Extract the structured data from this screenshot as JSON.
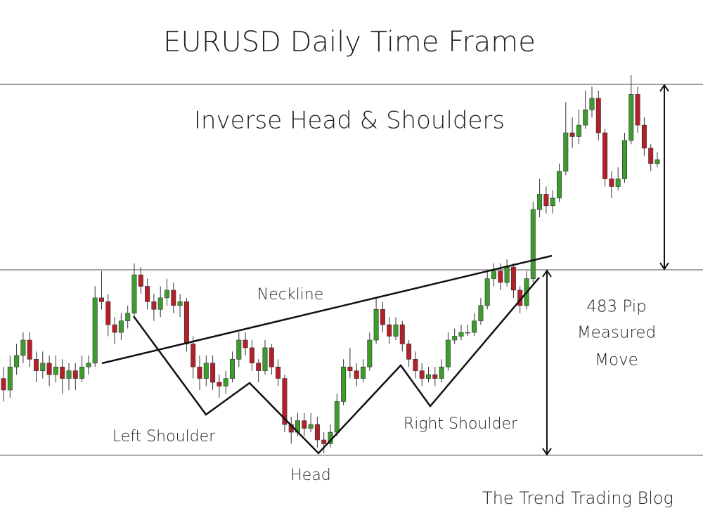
{
  "chart_data": {
    "type": "candlestick",
    "title": "EURUSD Daily Time Frame",
    "subtitle": "Inverse Head & Shoulders",
    "annotations": {
      "neckline": "Neckline",
      "left_shoulder": "Left Shoulder",
      "head": "Head",
      "right_shoulder": "Right Shoulder",
      "measured_move": [
        "483 Pip",
        "Measured",
        "Move"
      ]
    },
    "credit": "The Trend Trading Blog",
    "up_color": "#3c9c2c",
    "down_color": "#b3202a",
    "ylim": [
      -187,
      1186
    ],
    "levels": [
      0,
      483,
      966
    ],
    "ohlc": [
      [
        200,
        230,
        140,
        170
      ],
      [
        170,
        260,
        150,
        230
      ],
      [
        230,
        290,
        210,
        260
      ],
      [
        260,
        320,
        240,
        300
      ],
      [
        300,
        320,
        230,
        250
      ],
      [
        250,
        270,
        190,
        220
      ],
      [
        220,
        270,
        200,
        240
      ],
      [
        240,
        260,
        180,
        210
      ],
      [
        210,
        260,
        190,
        230
      ],
      [
        230,
        250,
        160,
        200
      ],
      [
        200,
        240,
        170,
        220
      ],
      [
        220,
        240,
        170,
        200
      ],
      [
        200,
        260,
        190,
        230
      ],
      [
        230,
        260,
        210,
        240
      ],
      [
        240,
        440,
        230,
        410
      ],
      [
        410,
        480,
        380,
        400
      ],
      [
        400,
        420,
        310,
        340
      ],
      [
        340,
        360,
        290,
        320
      ],
      [
        320,
        370,
        300,
        350
      ],
      [
        350,
        390,
        330,
        370
      ],
      [
        370,
        500,
        360,
        470
      ],
      [
        470,
        490,
        420,
        440
      ],
      [
        440,
        460,
        380,
        400
      ],
      [
        400,
        420,
        350,
        380
      ],
      [
        380,
        440,
        360,
        410
      ],
      [
        410,
        460,
        390,
        430
      ],
      [
        430,
        450,
        370,
        390
      ],
      [
        390,
        420,
        360,
        400
      ],
      [
        400,
        410,
        270,
        290
      ],
      [
        290,
        310,
        200,
        230
      ],
      [
        230,
        260,
        170,
        200
      ],
      [
        200,
        260,
        180,
        240
      ],
      [
        240,
        260,
        170,
        190
      ],
      [
        190,
        210,
        150,
        180
      ],
      [
        180,
        220,
        160,
        200
      ],
      [
        200,
        270,
        190,
        250
      ],
      [
        250,
        320,
        230,
        300
      ],
      [
        300,
        320,
        260,
        280
      ],
      [
        280,
        300,
        220,
        240
      ],
      [
        240,
        250,
        190,
        220
      ],
      [
        220,
        300,
        210,
        280
      ],
      [
        280,
        290,
        210,
        230
      ],
      [
        230,
        250,
        180,
        200
      ],
      [
        200,
        210,
        60,
        80
      ],
      [
        80,
        100,
        30,
        60
      ],
      [
        60,
        110,
        50,
        90
      ],
      [
        90,
        110,
        50,
        70
      ],
      [
        70,
        110,
        60,
        80
      ],
      [
        80,
        100,
        20,
        40
      ],
      [
        40,
        60,
        5,
        30
      ],
      [
        30,
        80,
        20,
        60
      ],
      [
        60,
        160,
        50,
        140
      ],
      [
        140,
        250,
        130,
        230
      ],
      [
        230,
        280,
        200,
        220
      ],
      [
        220,
        240,
        180,
        200
      ],
      [
        200,
        250,
        190,
        230
      ],
      [
        230,
        320,
        220,
        300
      ],
      [
        300,
        410,
        290,
        380
      ],
      [
        380,
        400,
        320,
        340
      ],
      [
        340,
        360,
        290,
        310
      ],
      [
        310,
        360,
        300,
        340
      ],
      [
        340,
        350,
        270,
        290
      ],
      [
        290,
        300,
        230,
        250
      ],
      [
        250,
        270,
        200,
        220
      ],
      [
        220,
        240,
        180,
        200
      ],
      [
        200,
        230,
        190,
        210
      ],
      [
        210,
        230,
        180,
        200
      ],
      [
        200,
        250,
        190,
        230
      ],
      [
        230,
        320,
        220,
        300
      ],
      [
        300,
        330,
        290,
        310
      ],
      [
        310,
        340,
        300,
        320
      ],
      [
        320,
        340,
        310,
        320
      ],
      [
        320,
        370,
        310,
        350
      ],
      [
        350,
        410,
        340,
        390
      ],
      [
        390,
        480,
        380,
        460
      ],
      [
        460,
        500,
        440,
        480
      ],
      [
        480,
        500,
        430,
        450
      ],
      [
        450,
        510,
        440,
        490
      ],
      [
        490,
        500,
        410,
        430
      ],
      [
        430,
        440,
        370,
        390
      ],
      [
        390,
        480,
        380,
        460
      ],
      [
        460,
        660,
        450,
        640
      ],
      [
        640,
        720,
        620,
        680
      ],
      [
        680,
        700,
        630,
        650
      ],
      [
        650,
        690,
        630,
        670
      ],
      [
        670,
        760,
        660,
        740
      ],
      [
        740,
        920,
        730,
        840
      ],
      [
        840,
        880,
        800,
        830
      ],
      [
        830,
        900,
        810,
        860
      ],
      [
        860,
        950,
        850,
        900
      ],
      [
        900,
        960,
        880,
        930
      ],
      [
        930,
        950,
        820,
        840
      ],
      [
        840,
        850,
        700,
        720
      ],
      [
        720,
        740,
        670,
        700
      ],
      [
        700,
        750,
        690,
        720
      ],
      [
        720,
        840,
        710,
        820
      ],
      [
        820,
        990,
        810,
        940
      ],
      [
        940,
        960,
        840,
        860
      ],
      [
        860,
        880,
        780,
        800
      ],
      [
        800,
        810,
        740,
        760
      ],
      [
        760,
        790,
        750,
        770
      ]
    ]
  }
}
